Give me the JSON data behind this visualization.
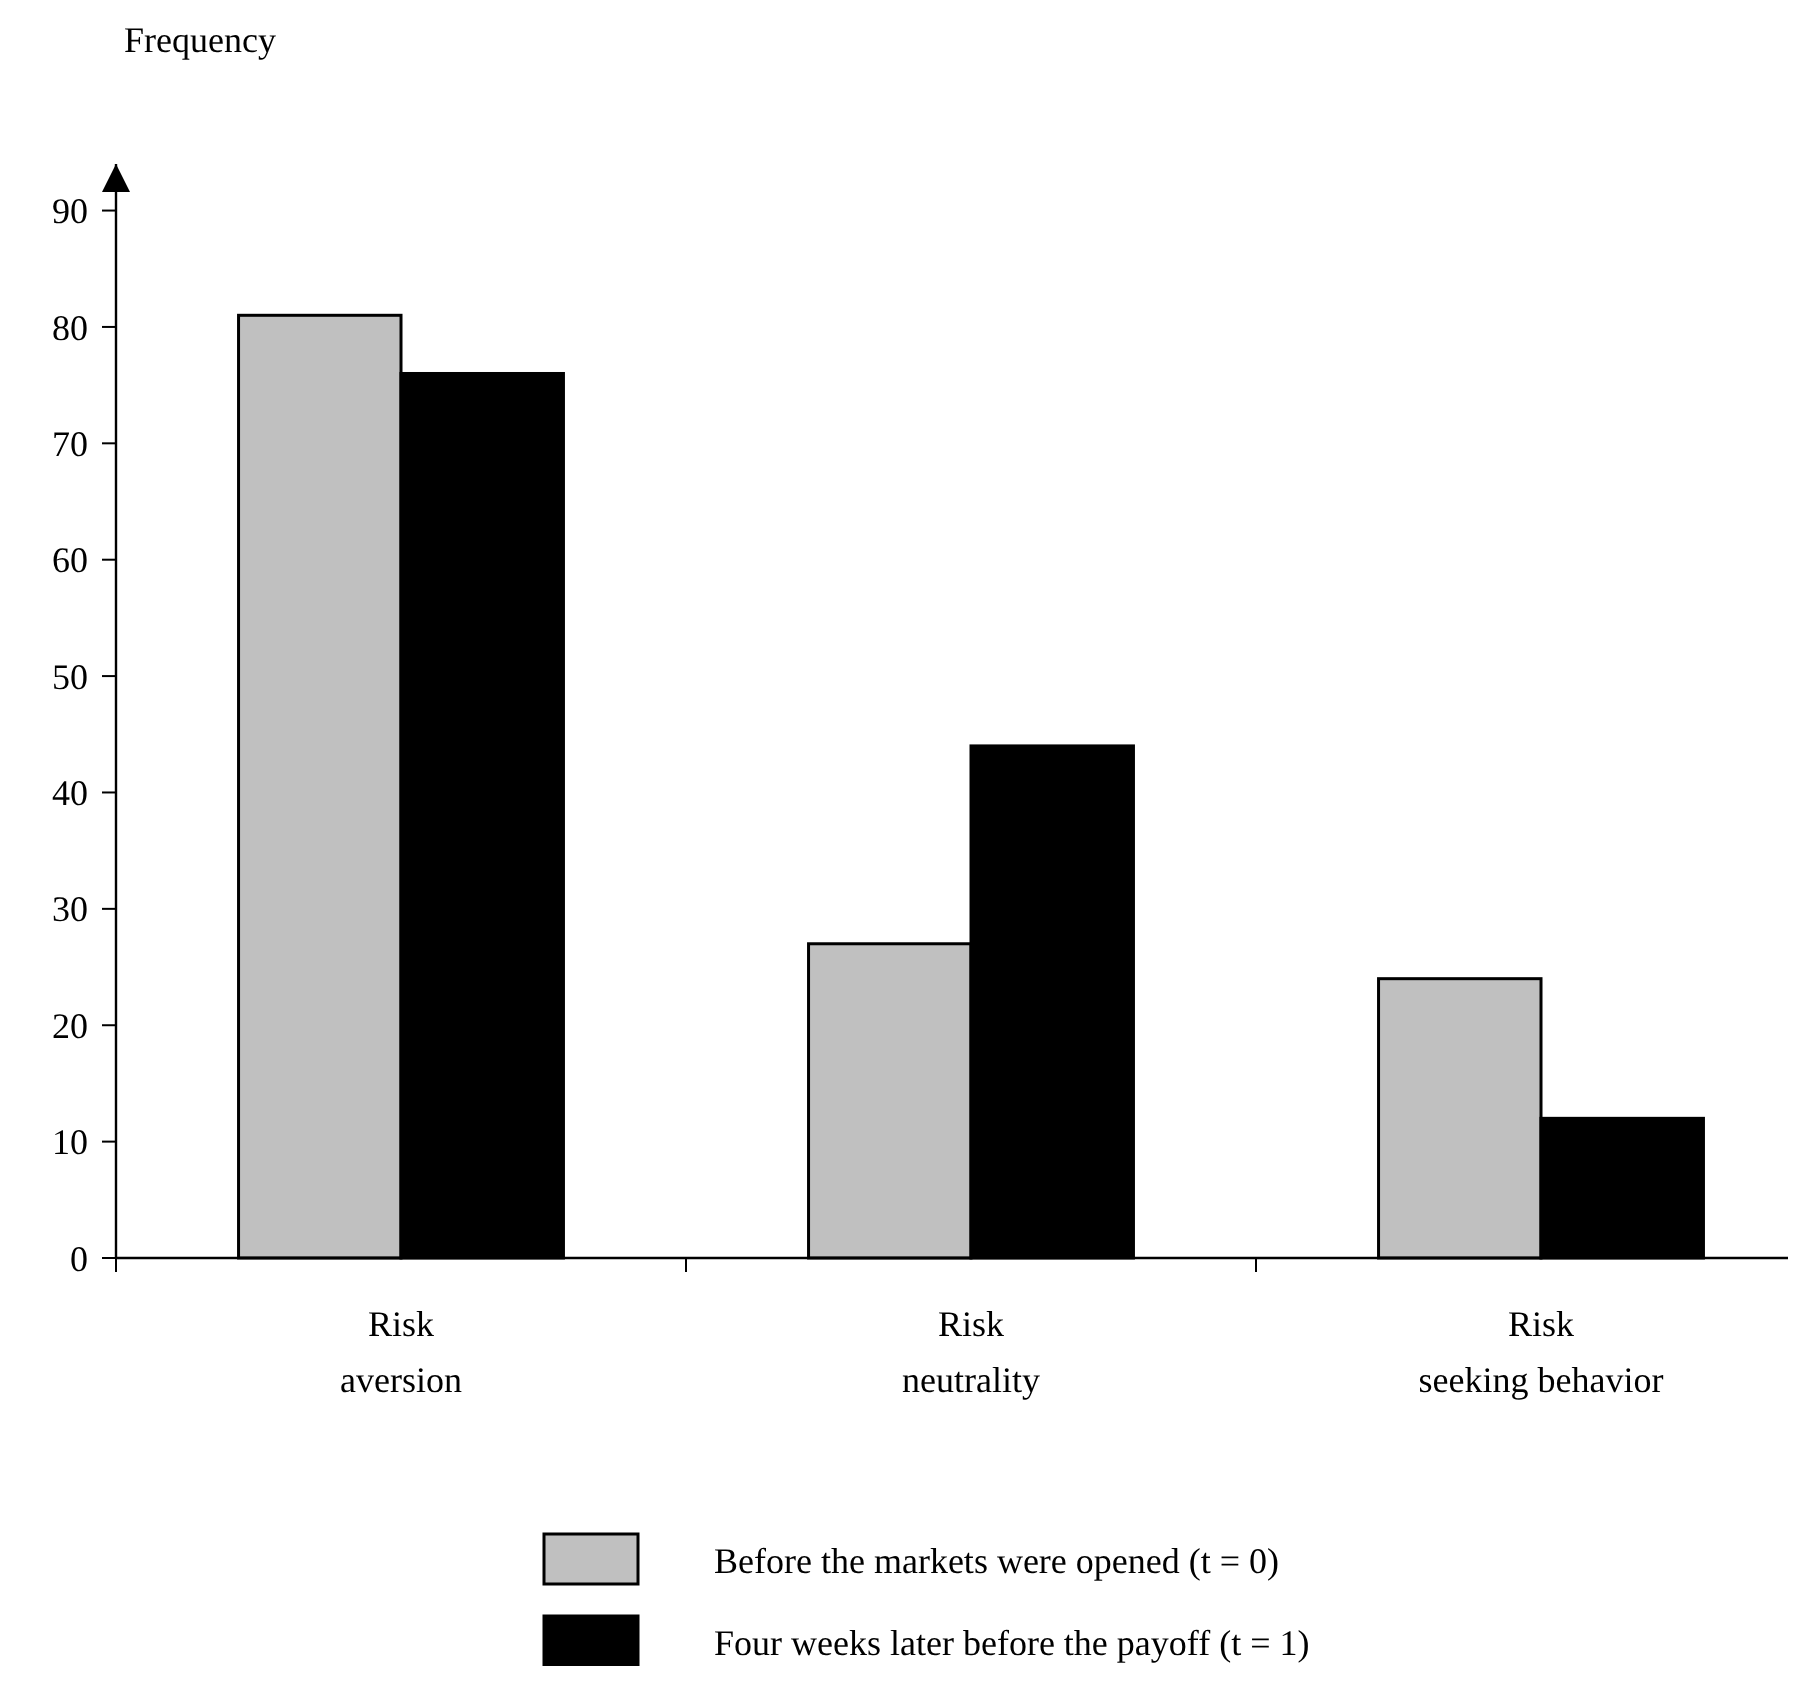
{
  "chart_data": {
    "type": "bar",
    "ylabel": "Frequency",
    "categories": [
      "Risk\naversion",
      "Risk\nneutrality",
      "Risk\nseeking behavior"
    ],
    "series": [
      {
        "name": "Before the markets were opened (t = 0)",
        "color": "#c0c0c0",
        "values": [
          81,
          27,
          24
        ]
      },
      {
        "name": "Four weeks later before the payoff (t = 1)",
        "color": "#000000",
        "values": [
          76,
          44,
          12
        ]
      }
    ],
    "ylim": [
      0,
      94
    ],
    "yticks": [
      0,
      10,
      20,
      30,
      40,
      50,
      60,
      70,
      80,
      90
    ],
    "grid": false,
    "legend": "bottom"
  }
}
